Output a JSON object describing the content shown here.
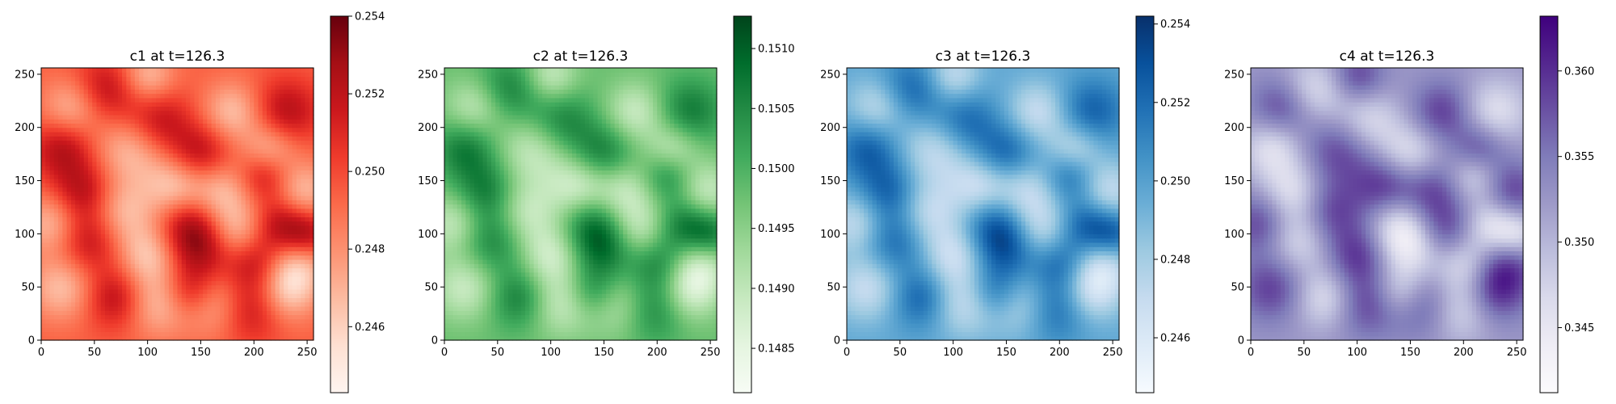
{
  "chart_data": [
    {
      "type": "heatmap",
      "title": "c1 at t=126.3",
      "colormap": "Reds",
      "colormap_stops": [
        "#fff5f0",
        "#fee0d2",
        "#fcbba1",
        "#fc9272",
        "#fb6a4a",
        "#ef3b2c",
        "#cb181d",
        "#a50f15",
        "#67000d"
      ],
      "xlim": [
        0,
        256
      ],
      "ylim": [
        0,
        256
      ],
      "xticks": [
        0,
        50,
        100,
        150,
        200,
        250
      ],
      "yticks": [
        0,
        50,
        100,
        150,
        200,
        250
      ],
      "colorbar": {
        "range": [
          0.2443,
          0.254
        ],
        "ticks": [
          0.246,
          0.248,
          0.25,
          0.252,
          0.254
        ],
        "tick_labels": [
          "0.246",
          "0.248",
          "0.250",
          "0.252",
          "0.254"
        ]
      },
      "pattern_sign": 1
    },
    {
      "type": "heatmap",
      "title": "c2 at t=126.3",
      "colormap": "Greens",
      "colormap_stops": [
        "#f7fcf5",
        "#e5f5e0",
        "#c7e9c0",
        "#a1d99b",
        "#74c476",
        "#41ab5d",
        "#238b45",
        "#006d2c",
        "#00441b"
      ],
      "xlim": [
        0,
        256
      ],
      "ylim": [
        0,
        256
      ],
      "xticks": [
        0,
        50,
        100,
        150,
        200,
        250
      ],
      "yticks": [
        0,
        50,
        100,
        150,
        200,
        250
      ],
      "colorbar": {
        "range": [
          0.14813,
          0.15127
        ],
        "ticks": [
          0.1485,
          0.149,
          0.1495,
          0.15,
          0.1505,
          0.151
        ],
        "tick_labels": [
          "0.1485",
          "0.1490",
          "0.1495",
          "0.1500",
          "0.1505",
          "0.1510"
        ]
      },
      "pattern_sign": 1
    },
    {
      "type": "heatmap",
      "title": "c3 at t=126.3",
      "colormap": "Blues",
      "colormap_stops": [
        "#f7fbff",
        "#deebf7",
        "#c6dbef",
        "#9ecae1",
        "#6baed6",
        "#4292c6",
        "#2171b5",
        "#08519c",
        "#08306b"
      ],
      "xlim": [
        0,
        256
      ],
      "ylim": [
        0,
        256
      ],
      "xticks": [
        0,
        50,
        100,
        150,
        200,
        250
      ],
      "yticks": [
        0,
        50,
        100,
        150,
        200,
        250
      ],
      "colorbar": {
        "range": [
          0.2446,
          0.2542
        ],
        "ticks": [
          0.246,
          0.248,
          0.25,
          0.252,
          0.254
        ],
        "tick_labels": [
          "0.246",
          "0.248",
          "0.250",
          "0.252",
          "0.254"
        ]
      },
      "pattern_sign": 1
    },
    {
      "type": "heatmap",
      "title": "c4 at t=126.3",
      "colormap": "Purples",
      "colormap_stops": [
        "#fcfbfd",
        "#efedf5",
        "#dadaeb",
        "#bcbddc",
        "#9e9ac8",
        "#807dba",
        "#6a51a3",
        "#54278f",
        "#3f007d"
      ],
      "xlim": [
        0,
        256
      ],
      "ylim": [
        0,
        256
      ],
      "xticks": [
        0,
        50,
        100,
        150,
        200,
        250
      ],
      "yticks": [
        0,
        50,
        100,
        150,
        200,
        250
      ],
      "colorbar": {
        "range": [
          0.3412,
          0.3632
        ],
        "ticks": [
          0.345,
          0.35,
          0.355,
          0.36
        ],
        "tick_labels": [
          "0.345",
          "0.350",
          "0.355",
          "0.360"
        ]
      },
      "pattern_sign": -1
    }
  ]
}
